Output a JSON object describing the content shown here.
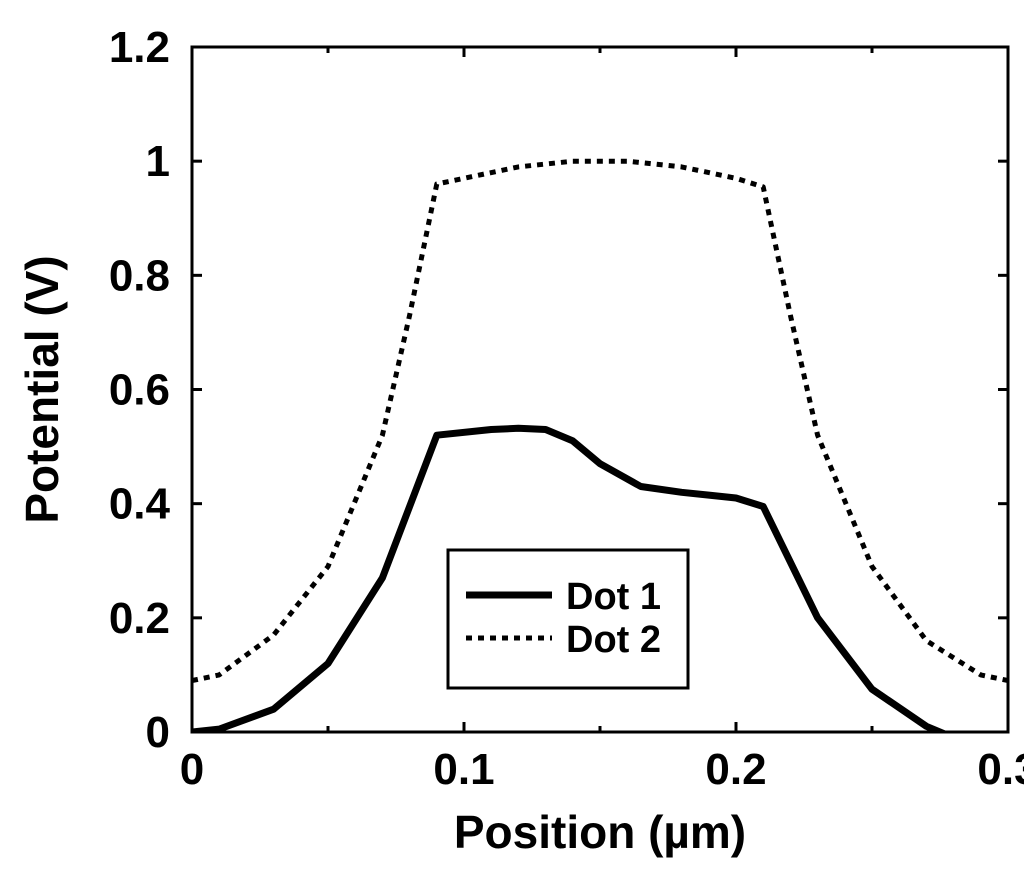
{
  "chart_data": {
    "type": "line",
    "title": "",
    "xlabel": "Position (µm)",
    "ylabel": "Potential (V)",
    "xlim": [
      0,
      0.3
    ],
    "ylim": [
      0,
      1.2
    ],
    "xticks": [
      0,
      0.1,
      0.2,
      0.3
    ],
    "xtick_labels": [
      "0",
      "0.1",
      "0.2",
      "0.3"
    ],
    "yticks": [
      0,
      0.2,
      0.4,
      0.6,
      0.8,
      1.0,
      1.2
    ],
    "ytick_labels": [
      "0",
      "0.2",
      "0.4",
      "0.6",
      "0.8",
      "1",
      "1.2"
    ],
    "grid": false,
    "legend_position": "lower-center",
    "series": [
      {
        "name": "Dot 1",
        "style": "solid",
        "color": "#000000",
        "x": [
          0,
          0.01,
          0.03,
          0.05,
          0.07,
          0.09,
          0.11,
          0.12,
          0.13,
          0.14,
          0.15,
          0.165,
          0.18,
          0.19,
          0.2,
          0.21,
          0.23,
          0.25,
          0.27,
          0.28
        ],
        "y": [
          0,
          0.005,
          0.04,
          0.12,
          0.27,
          0.52,
          0.53,
          0.532,
          0.53,
          0.51,
          0.47,
          0.43,
          0.42,
          0.415,
          0.41,
          0.395,
          0.2,
          0.075,
          0.01,
          -0.01
        ]
      },
      {
        "name": "Dot 2",
        "style": "dotted",
        "color": "#000000",
        "x": [
          0,
          0.01,
          0.03,
          0.05,
          0.07,
          0.08,
          0.09,
          0.1,
          0.12,
          0.14,
          0.15,
          0.16,
          0.18,
          0.2,
          0.21,
          0.22,
          0.23,
          0.25,
          0.27,
          0.29,
          0.3
        ],
        "y": [
          0.09,
          0.1,
          0.17,
          0.29,
          0.52,
          0.73,
          0.96,
          0.97,
          0.99,
          1.0,
          1.0,
          1.0,
          0.99,
          0.97,
          0.955,
          0.73,
          0.52,
          0.29,
          0.16,
          0.1,
          0.09
        ]
      }
    ]
  }
}
